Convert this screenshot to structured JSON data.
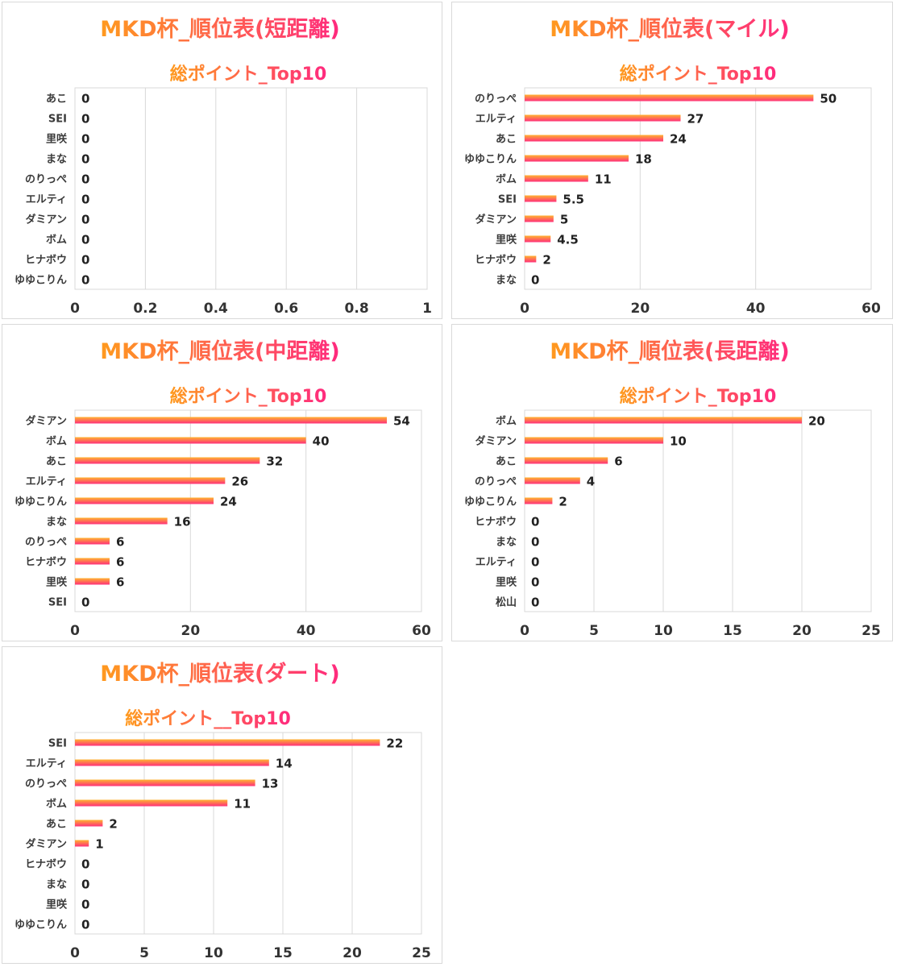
{
  "colors": {
    "bar_start": "#ffb32e",
    "bar_end": "#ff2f7a",
    "title_start": "#ff9a1e",
    "title_end": "#ff2a7e",
    "grid": "#d9d9d9"
  },
  "chart_data": [
    {
      "type": "bar",
      "title": "MKD杯_順位表(短距離)",
      "subtitle": "総ポイント_Top10",
      "categories": [
        "あこ",
        "SEI",
        "里咲",
        "まな",
        "のりっぺ",
        "エルティ",
        "ダミアン",
        "ボム",
        "ヒナボウ",
        "ゆゆこりん"
      ],
      "values": [
        0,
        0,
        0,
        0,
        0,
        0,
        0,
        0,
        0,
        0
      ],
      "value_labels": [
        "0",
        "0",
        "0",
        "0",
        "0",
        "0",
        "0",
        "0",
        "0",
        "0"
      ],
      "xticks": [
        "0",
        "0.2",
        "0.4",
        "0.6",
        "0.8",
        "1"
      ],
      "xlim": [
        0,
        1
      ],
      "grid": true
    },
    {
      "type": "bar",
      "title": "MKD杯_順位表(マイル)",
      "subtitle": "総ポイント_Top10",
      "categories": [
        "のりっぺ",
        "エルティ",
        "あこ",
        "ゆゆこりん",
        "ボム",
        "SEI",
        "ダミアン",
        "里咲",
        "ヒナボウ",
        "まな"
      ],
      "values": [
        50,
        27,
        24,
        18,
        11,
        5.5,
        5,
        4.5,
        2,
        0
      ],
      "value_labels": [
        "50",
        "27",
        "24",
        "18",
        "11",
        "5.5",
        "5",
        "4.5",
        "2",
        "0"
      ],
      "xticks": [
        "0",
        "20",
        "40",
        "60"
      ],
      "xlim": [
        0,
        60
      ],
      "grid": true
    },
    {
      "type": "bar",
      "title": "MKD杯_順位表(中距離)",
      "subtitle": "総ポイント_Top10",
      "categories": [
        "ダミアン",
        "ボム",
        "あこ",
        "エルティ",
        "ゆゆこりん",
        "まな",
        "のりっぺ",
        "ヒナボウ",
        "里咲",
        "SEI"
      ],
      "values": [
        54,
        40,
        32,
        26,
        24,
        16,
        6,
        6,
        6,
        0
      ],
      "value_labels": [
        "54",
        "40",
        "32",
        "26",
        "24",
        "16",
        "6",
        "6",
        "6",
        "0"
      ],
      "xticks": [
        "0",
        "20",
        "40",
        "60"
      ],
      "xlim": [
        0,
        60
      ],
      "grid": true
    },
    {
      "type": "bar",
      "title": "MKD杯_順位表(長距離)",
      "subtitle": "総ポイント_Top10",
      "categories": [
        "ボム",
        "ダミアン",
        "あこ",
        "のりっぺ",
        "ゆゆこりん",
        "ヒナボウ",
        "まな",
        "エルティ",
        "里咲",
        "松山"
      ],
      "values": [
        20,
        10,
        6,
        4,
        2,
        0,
        0,
        0,
        0,
        0
      ],
      "value_labels": [
        "20",
        "10",
        "6",
        "4",
        "2",
        "0",
        "0",
        "0",
        "0",
        "0"
      ],
      "xticks": [
        "0",
        "5",
        "10",
        "15",
        "20",
        "25"
      ],
      "xlim": [
        0,
        25
      ],
      "grid": true
    },
    {
      "type": "bar",
      "title": "MKD杯_順位表(ダート)",
      "subtitle": "総ポイント__Top10",
      "categories": [
        "SEI",
        "エルティ",
        "のりっぺ",
        "ボム",
        "あこ",
        "ダミアン",
        "ヒナボウ",
        "まな",
        "里咲",
        "ゆゆこりん"
      ],
      "values": [
        22,
        14,
        13,
        11,
        2,
        1,
        0,
        0,
        0,
        0
      ],
      "value_labels": [
        "22",
        "14",
        "13",
        "11",
        "2",
        "1",
        "0",
        "0",
        "0",
        "0"
      ],
      "xticks": [
        "0",
        "5",
        "10",
        "15",
        "20",
        "25"
      ],
      "xlim": [
        0,
        25
      ],
      "grid": true
    }
  ]
}
